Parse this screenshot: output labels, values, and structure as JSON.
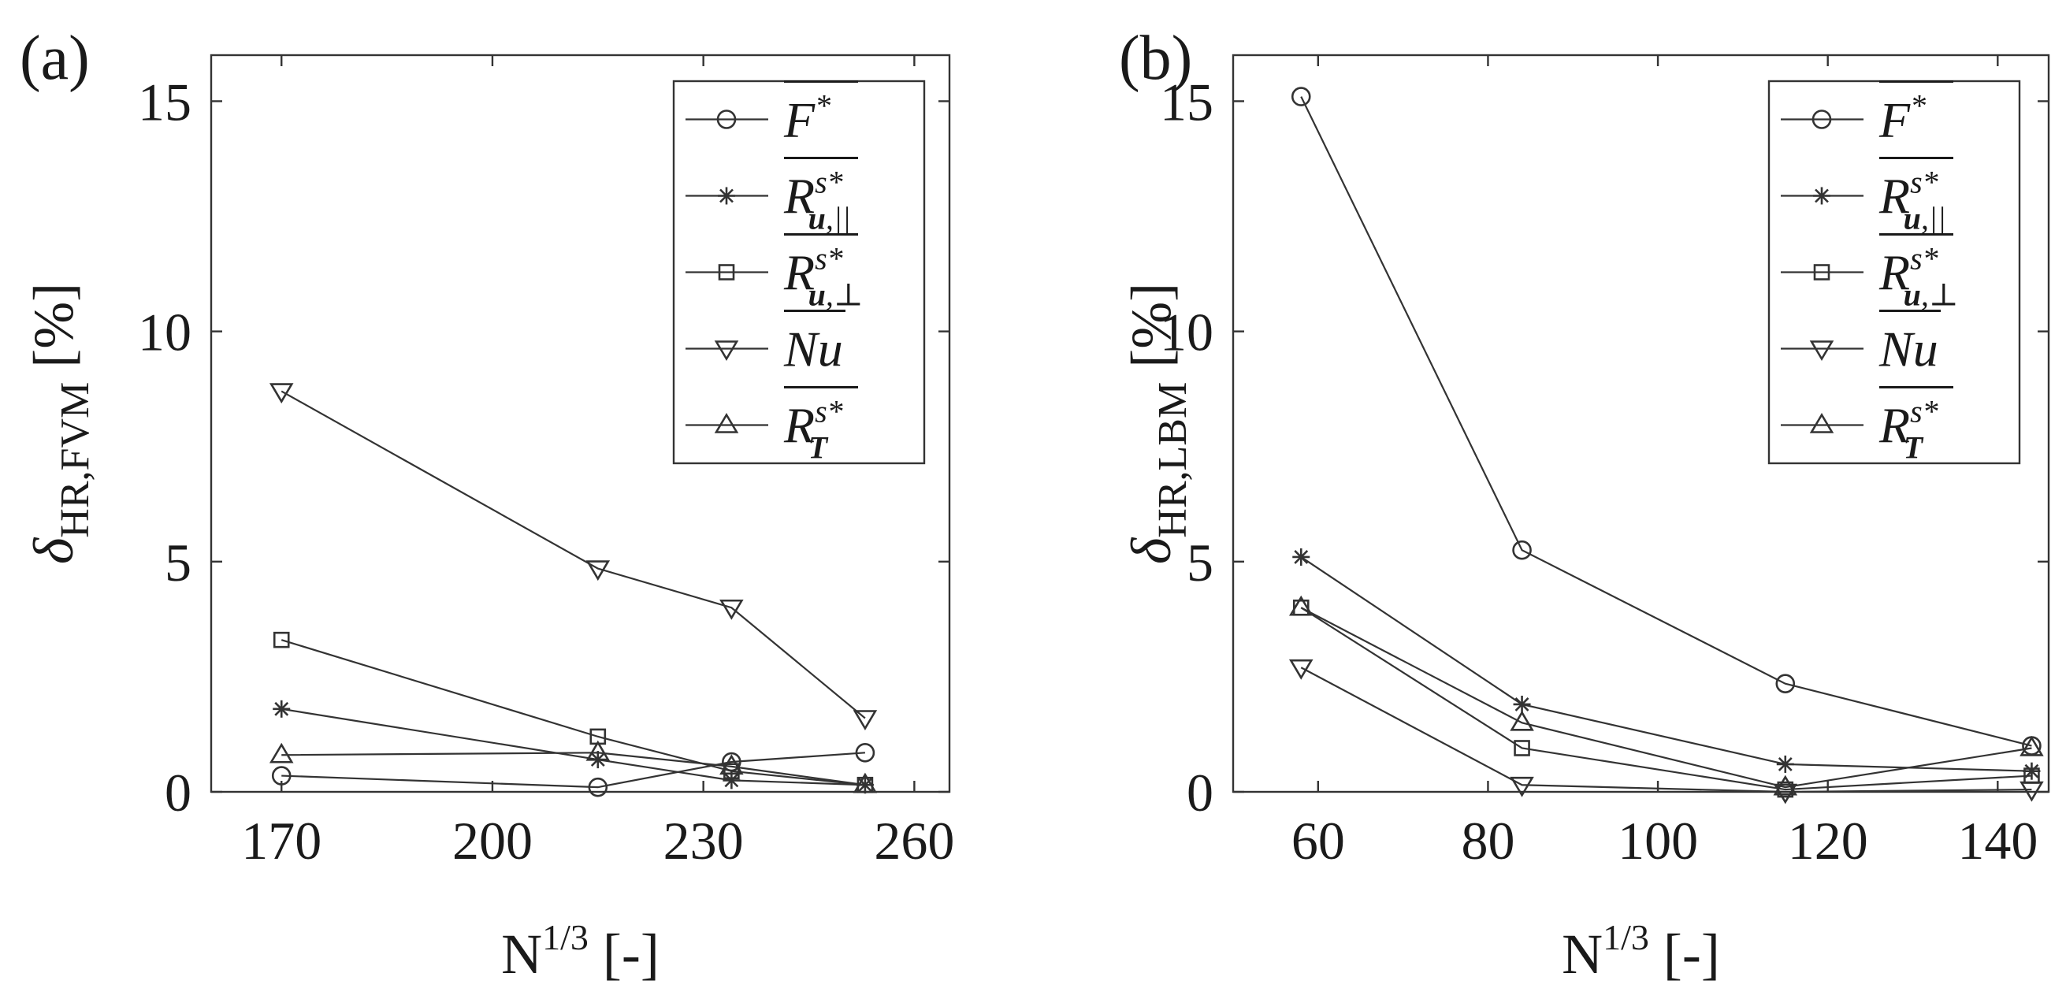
{
  "chart_data": [
    {
      "type": "line",
      "panel_label": "(a)",
      "xlabel": "N^{1/3} [-]",
      "xlabel_parts": {
        "base": "N",
        "sup": "1/3",
        "unit": "[-]"
      },
      "ylabel": "δ_HR,FVM [%]",
      "ylabel_parts": {
        "symbol": "δ",
        "sub": "HR,FVM",
        "unit": "[%]"
      },
      "xlim": [
        160,
        265
      ],
      "ylim": [
        0,
        16
      ],
      "xticks": [
        170,
        200,
        230,
        260
      ],
      "xtick_labels": [
        "170",
        "200",
        "230",
        "260"
      ],
      "yticks": [
        0,
        5,
        10,
        15
      ],
      "ytick_labels": [
        "0",
        "5",
        "10",
        "15"
      ],
      "legend_position": "top-right",
      "grid": false,
      "x": [
        170,
        215,
        234,
        253
      ],
      "series": [
        {
          "name": "F*",
          "marker": "circle",
          "legend": {
            "base": "F",
            "sup": "*",
            "sub": ""
          },
          "values": [
            0.35,
            0.1,
            0.65,
            0.85
          ]
        },
        {
          "name": "R^{s*}_{u,||}",
          "marker": "star",
          "legend": {
            "base": "R",
            "sup": "s*",
            "sub": "u,||"
          },
          "values": [
            1.8,
            0.7,
            0.25,
            0.15
          ]
        },
        {
          "name": "R^{s*}_{u,⊥}",
          "marker": "square",
          "legend": {
            "base": "R",
            "sup": "s*",
            "sub": "u,⊥"
          },
          "values": [
            3.3,
            1.2,
            0.45,
            0.15
          ]
        },
        {
          "name": "Nu",
          "marker": "triangle-down",
          "legend": {
            "base": "Nu",
            "sup": "",
            "sub": ""
          },
          "values": [
            8.7,
            4.85,
            4.0,
            1.6
          ]
        },
        {
          "name": "R^{s*}_T",
          "marker": "triangle-up",
          "legend": {
            "base": "R",
            "sup": "s*",
            "sub": "T"
          },
          "values": [
            0.8,
            0.85,
            0.55,
            0.15
          ]
        }
      ]
    },
    {
      "type": "line",
      "panel_label": "(b)",
      "xlabel": "N^{1/3} [-]",
      "xlabel_parts": {
        "base": "N",
        "sup": "1/3",
        "unit": "[-]"
      },
      "ylabel": "δ_HR,LBM [%]",
      "ylabel_parts": {
        "symbol": "δ",
        "sub": "HR,LBM",
        "unit": "[%]"
      },
      "xlim": [
        50,
        146
      ],
      "ylim": [
        0,
        16
      ],
      "xticks": [
        60,
        80,
        100,
        120,
        140
      ],
      "xtick_labels": [
        "60",
        "80",
        "100",
        "120",
        "140"
      ],
      "yticks": [
        0,
        5,
        10,
        15
      ],
      "ytick_labels": [
        "0",
        "5",
        "10",
        "15"
      ],
      "legend_position": "top-right",
      "grid": false,
      "x": [
        58,
        84,
        115,
        144
      ],
      "series": [
        {
          "name": "F*",
          "marker": "circle",
          "legend": {
            "base": "F",
            "sup": "*",
            "sub": ""
          },
          "values": [
            15.1,
            5.25,
            2.35,
            1.0
          ]
        },
        {
          "name": "R^{s*}_{u,||}",
          "marker": "star",
          "legend": {
            "base": "R",
            "sup": "s*",
            "sub": "u,||"
          },
          "values": [
            5.1,
            1.9,
            0.6,
            0.45
          ]
        },
        {
          "name": "R^{s*}_{u,⊥}",
          "marker": "square",
          "legend": {
            "base": "R",
            "sup": "s*",
            "sub": "u,⊥"
          },
          "values": [
            4.0,
            0.95,
            0.05,
            0.35
          ]
        },
        {
          "name": "Nu",
          "marker": "triangle-down",
          "legend": {
            "base": "Nu",
            "sup": "",
            "sub": ""
          },
          "values": [
            2.7,
            0.15,
            0.0,
            0.05
          ]
        },
        {
          "name": "R^{s*}_T",
          "marker": "triangle-up",
          "legend": {
            "base": "R",
            "sup": "s*",
            "sub": "T"
          },
          "values": [
            4.0,
            1.5,
            0.1,
            0.95
          ]
        }
      ]
    }
  ]
}
